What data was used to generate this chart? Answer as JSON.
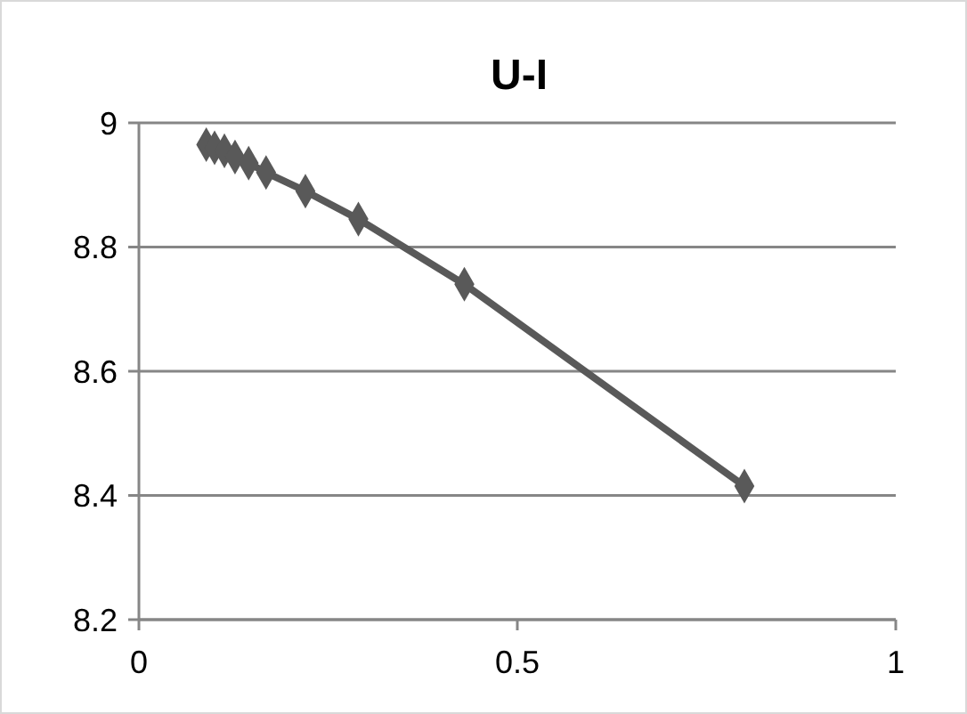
{
  "chart_data": {
    "type": "line",
    "title": "U-I",
    "x": [
      0.089,
      0.1,
      0.113,
      0.127,
      0.145,
      0.168,
      0.22,
      0.29,
      0.43,
      0.8
    ],
    "series": [
      {
        "color": "#595959",
        "values": [
          8.965,
          8.96,
          8.955,
          8.945,
          8.935,
          8.92,
          8.89,
          8.845,
          8.74,
          8.415
        ]
      }
    ],
    "xlim": [
      0,
      1
    ],
    "xticks": [
      0,
      0.5,
      1
    ],
    "ylim": [
      8.2,
      9
    ],
    "yticks": [
      8.2,
      8.4,
      8.6,
      8.8,
      9
    ],
    "grid": "y",
    "marker": "diamond"
  }
}
